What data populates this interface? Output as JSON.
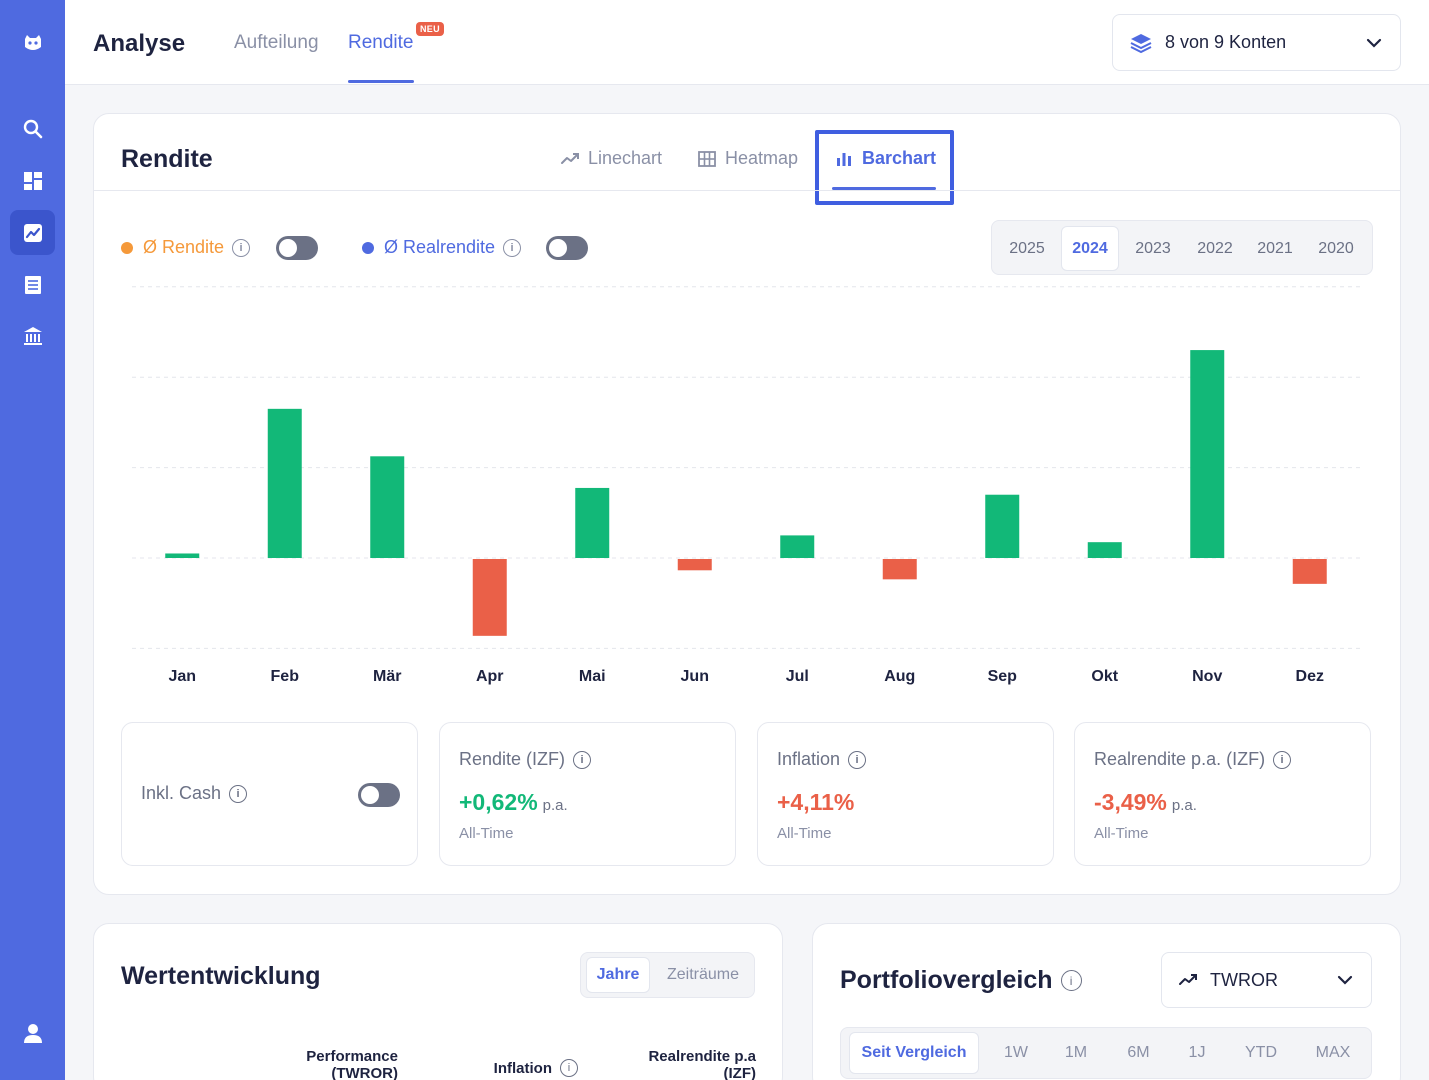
{
  "colors": {
    "accent": "#4f6ae0",
    "positive": "#12b878",
    "negative": "#ea6048",
    "orange": "#f5993a"
  },
  "header": {
    "title": "Analyse",
    "tabs": [
      {
        "label": "Aufteilung"
      },
      {
        "label": "Rendite",
        "badge": "NEU"
      }
    ],
    "account_selector": "8 von 9 Konten"
  },
  "sidebar": {
    "items": [
      "logo-icon",
      "search-icon",
      "dashboard-icon",
      "chart-icon",
      "list-icon",
      "bank-icon",
      "user-icon"
    ]
  },
  "rendite_card": {
    "title": "Rendite",
    "view_tabs": [
      {
        "label": "Linechart"
      },
      {
        "label": "Heatmap"
      },
      {
        "label": "Barchart"
      }
    ],
    "legend": [
      {
        "label": "Ø Rendite"
      },
      {
        "label": "Ø Realrendite"
      }
    ],
    "years": [
      "2025",
      "2024",
      "2023",
      "2022",
      "2021",
      "2020"
    ],
    "selected_year": "2024",
    "stats": {
      "cash_label": "Inkl. Cash",
      "items": [
        {
          "label": "Rendite (IZF)",
          "value": "+0,62%",
          "suffix": "p.a.",
          "sub": "All-Time"
        },
        {
          "label": "Inflation",
          "value": "+4,11%",
          "suffix": "",
          "sub": "All-Time"
        },
        {
          "label": "Realrendite p.a. (IZF)",
          "value": "-3,49%",
          "suffix": "p.a.",
          "sub": "All-Time"
        }
      ]
    }
  },
  "chart_data": {
    "type": "bar",
    "categories": [
      "Jan",
      "Feb",
      "Mär",
      "Apr",
      "Mai",
      "Jun",
      "Jul",
      "Aug",
      "Sep",
      "Okt",
      "Nov",
      "Dez"
    ],
    "values": [
      0.2,
      6.6,
      4.5,
      -3.4,
      3.1,
      -0.5,
      1.0,
      -0.9,
      2.8,
      0.7,
      9.2,
      -1.1
    ],
    "ylim": [
      -4,
      12
    ],
    "grid": true,
    "xlabel": "",
    "ylabel": ""
  },
  "wertentwicklung": {
    "title": "Wertentwicklung",
    "segments": [
      "Jahre",
      "Zeiträume"
    ],
    "columns": [
      "Performance (TWROR)",
      "Inflation",
      "Realrendite p.a (IZF)"
    ]
  },
  "portfoliovergleich": {
    "title": "Portfoliovergleich",
    "dropdown": "TWROR",
    "periods": [
      "Seit Vergleich",
      "1W",
      "1M",
      "6M",
      "1J",
      "YTD",
      "MAX"
    ]
  }
}
